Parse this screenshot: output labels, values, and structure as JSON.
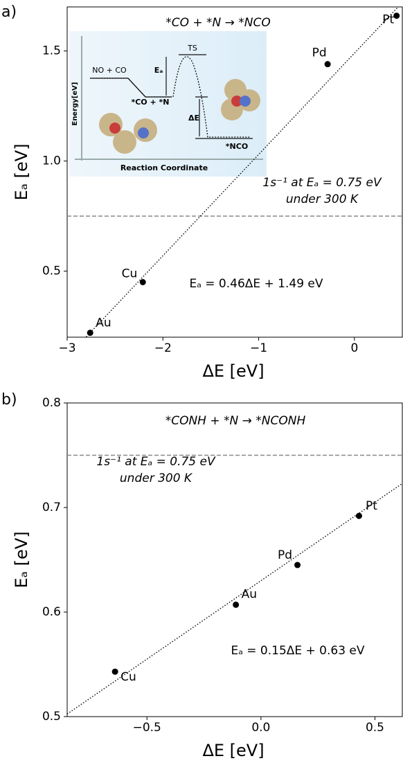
{
  "chart_data": [
    {
      "type": "scatter",
      "panel_label": "a)",
      "title": "*CO + *N → *NCO",
      "x_label": "ΔE [eV]",
      "y_label": "Eₐ [eV]",
      "point_labels": [
        "Au",
        "Cu",
        "Pd",
        "Pt"
      ],
      "x": [
        -2.76,
        -2.21,
        -0.28,
        0.44
      ],
      "values": [
        0.22,
        0.45,
        1.44,
        1.66
      ],
      "color": "#000000",
      "xlim": [
        -3,
        0.5
      ],
      "ylim": [
        0.2,
        1.7
      ],
      "xticks": [
        {
          "value": -3,
          "label": "−3"
        },
        {
          "value": -2,
          "label": "−2"
        },
        {
          "value": -1,
          "label": "−1"
        },
        0
      ],
      "yticks": [
        0.5,
        {
          "value": 1,
          "label": "1.0"
        },
        1.5
      ],
      "fit": {
        "slope": 0.46,
        "intercept": 1.49,
        "label": "Eₐ = 0.46ΔE + 1.49 eV"
      },
      "threshold": {
        "value": 0.75,
        "label": [
          "1s⁻¹ at Eₐ = 0.75 eV",
          "under 300 K"
        ]
      },
      "inset": {
        "labels": [
          "NO + CO",
          "TS",
          "Eₐ",
          "*CO + *N",
          "ΔE",
          "*NCO"
        ],
        "y_label": "Energy[eV]",
        "x_label": "Reaction Coordinate"
      }
    },
    {
      "type": "scatter",
      "panel_label": "b)",
      "title": "*CONH + *N → *NCONH",
      "x_label": "ΔE [eV]",
      "y_label": "Eₐ [eV]",
      "point_labels": [
        "Cu",
        "Au",
        "Pd",
        "Pt"
      ],
      "x": [
        -0.64,
        -0.11,
        0.16,
        0.43
      ],
      "values": [
        0.543,
        0.607,
        0.645,
        0.692
      ],
      "color": "#000000",
      "xlim": [
        -0.85,
        0.62
      ],
      "ylim": [
        0.5,
        0.8
      ],
      "xticks": [
        {
          "value": -0.5,
          "label": "−0.5"
        },
        {
          "value": 0,
          "label": "0.0"
        },
        0.5
      ],
      "yticks": [
        0.5,
        0.6,
        0.7,
        0.8
      ],
      "fit": {
        "slope": 0.15,
        "intercept": 0.63,
        "label": "Eₐ = 0.15ΔE + 0.63 eV"
      },
      "threshold": {
        "value": 0.75,
        "label": [
          "1s⁻¹ at Eₐ = 0.75 eV",
          "under 300 K"
        ]
      }
    }
  ]
}
